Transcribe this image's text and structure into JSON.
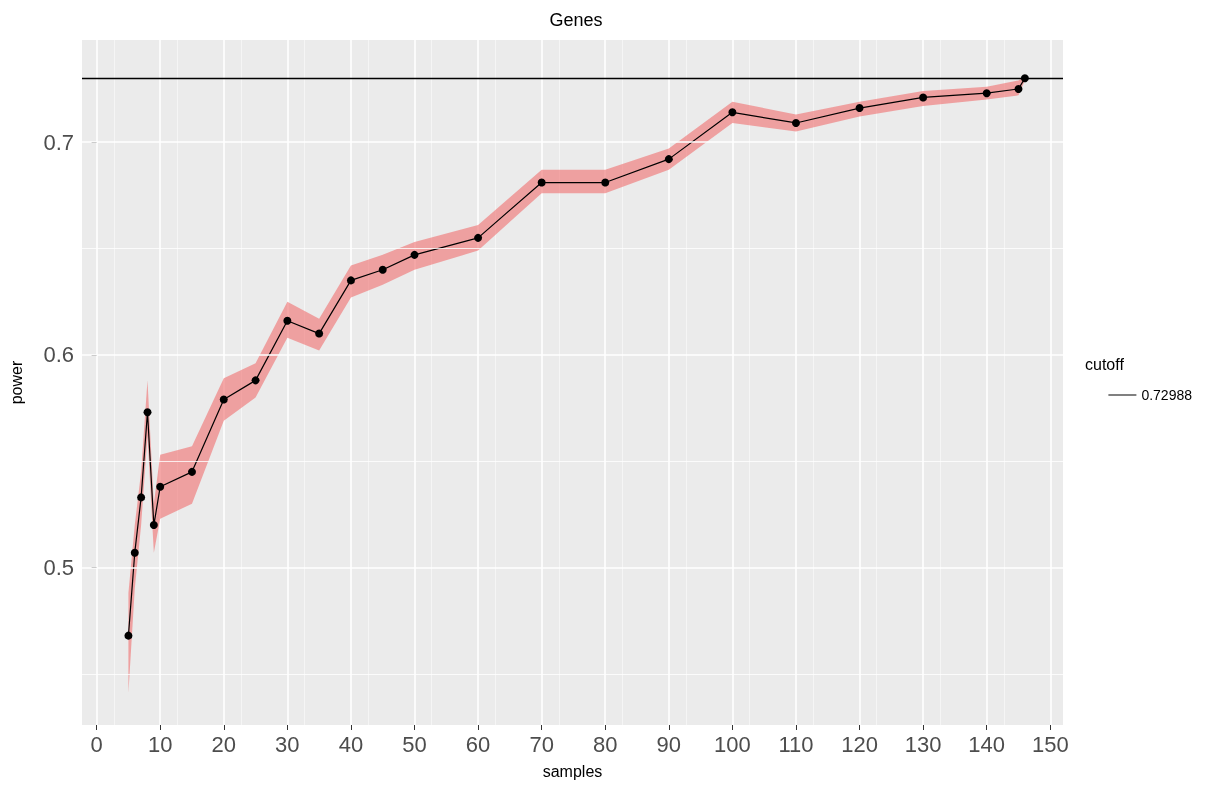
{
  "chart_data": {
    "type": "line",
    "title": "Genes",
    "xlabel": "samples",
    "ylabel": "power",
    "legend_title": "cutoff",
    "x": [
      5,
      6,
      7,
      8,
      9,
      10,
      15,
      20,
      25,
      30,
      35,
      40,
      45,
      50,
      60,
      70,
      80,
      90,
      100,
      110,
      120,
      130,
      140,
      145,
      146
    ],
    "series": [
      {
        "color": "#000000",
        "values": [
          0.468,
          0.507,
          0.533,
          0.573,
          0.52,
          0.538,
          0.545,
          0.579,
          0.588,
          0.616,
          0.61,
          0.635,
          0.64,
          0.647,
          0.655,
          0.681,
          0.681,
          0.692,
          0.714,
          0.709,
          0.716,
          0.721,
          0.723,
          0.725,
          0.73
        ],
        "lower": [
          0.441,
          0.49,
          0.52,
          0.562,
          0.507,
          0.523,
          0.53,
          0.569,
          0.58,
          0.608,
          0.602,
          0.627,
          0.633,
          0.64,
          0.649,
          0.676,
          0.676,
          0.687,
          0.709,
          0.705,
          0.712,
          0.717,
          0.72,
          0.722,
          0.729
        ],
        "upper": [
          0.488,
          0.52,
          0.545,
          0.588,
          0.53,
          0.553,
          0.557,
          0.589,
          0.596,
          0.625,
          0.617,
          0.642,
          0.647,
          0.653,
          0.661,
          0.687,
          0.687,
          0.697,
          0.719,
          0.713,
          0.719,
          0.724,
          0.726,
          0.729,
          0.731
        ]
      }
    ],
    "xlim": [
      -2.3,
      152
    ],
    "ylim": [
      0.426,
      0.748
    ],
    "xticks": [
      0,
      10,
      20,
      30,
      40,
      50,
      60,
      70,
      80,
      90,
      100,
      110,
      120,
      130,
      140,
      150
    ],
    "yticks": [
      0.5,
      0.6,
      0.7
    ],
    "ref_lines": [
      {
        "axis": "y",
        "value": 0.72988,
        "label": "0.72988",
        "color": "#000000"
      }
    ],
    "grid": true,
    "legend": "right",
    "marker": "circle",
    "line_style": "solid"
  }
}
